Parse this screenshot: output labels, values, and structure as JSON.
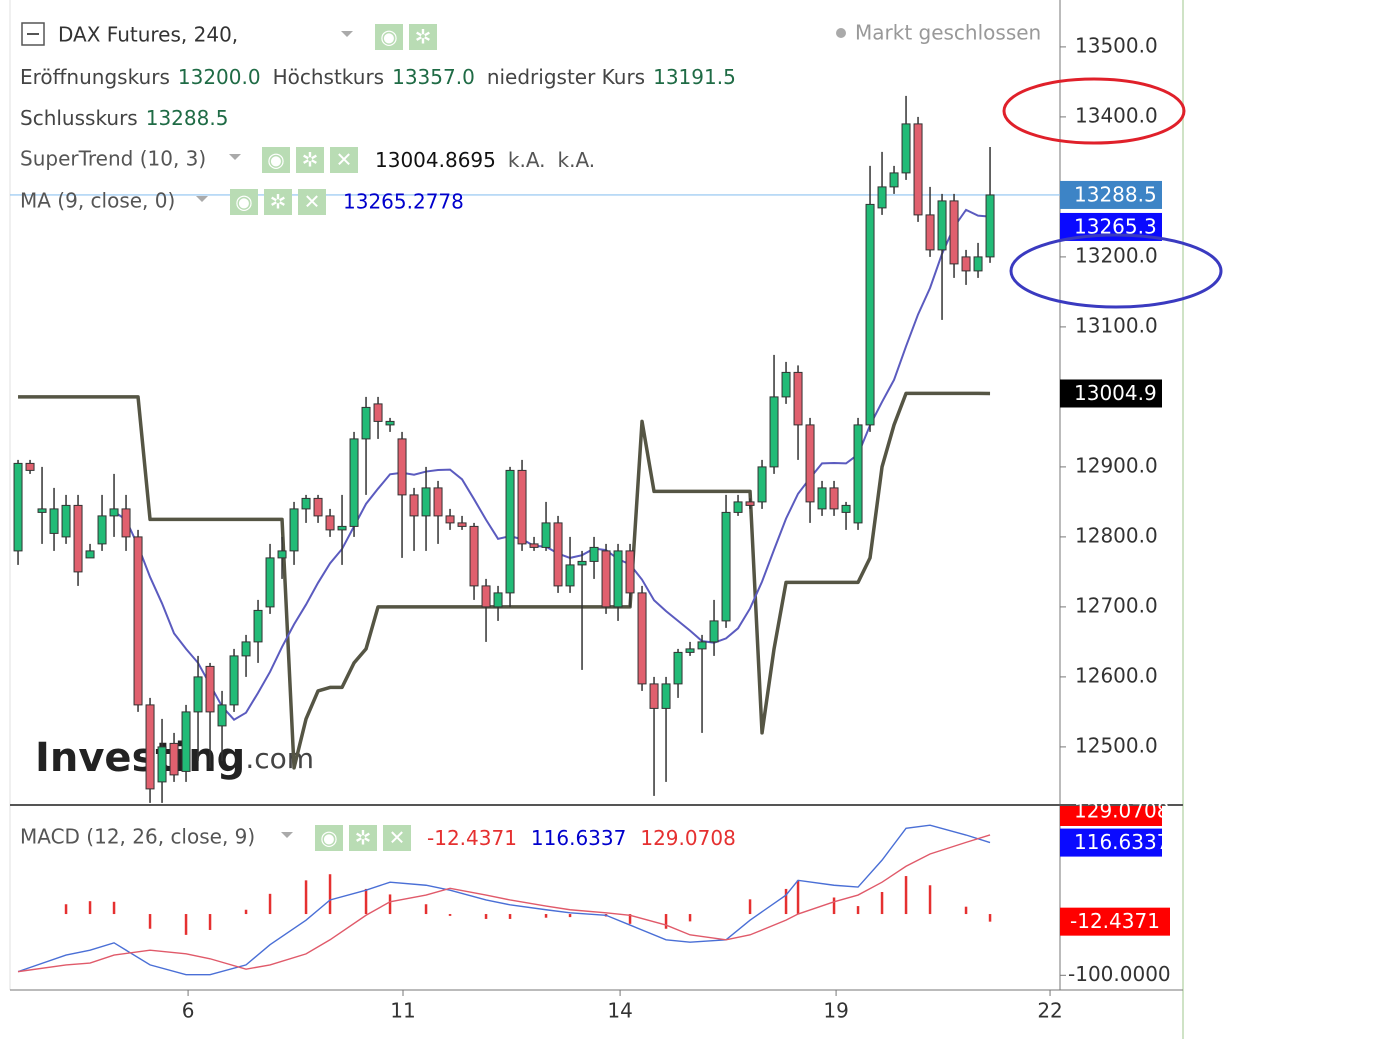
{
  "chart_data": {
    "type": "candlestick",
    "title": "DAX Futures, 240,",
    "status": "Markt geschlossen",
    "ohlc_legend": [
      {
        "label": "Eröffnungskurs",
        "value": "13200.0"
      },
      {
        "label": "Höchstkurs",
        "value": "13357.0"
      },
      {
        "label": "niedrigster Kurs",
        "value": "13191.5"
      },
      {
        "label": "Schlusskurs",
        "value": "13288.5"
      }
    ],
    "close_tag": "13288.5",
    "up_color": "#22bb77",
    "down_color": "#e0606e",
    "open": [
      12780,
      12905,
      12835,
      12805,
      12800,
      12845,
      12770,
      12790,
      12830,
      12840,
      12800,
      12560,
      12450,
      12505,
      12465,
      12550,
      12615,
      12530,
      12560,
      12630,
      12650,
      12700,
      12770,
      12780,
      12840,
      12855,
      12830,
      12810,
      12815,
      12940,
      12990,
      12960,
      12940,
      12860,
      12830,
      12870,
      12830,
      12820,
      12815,
      12730,
      12700,
      12720,
      12895,
      12790,
      12785,
      12820,
      12730,
      12760,
      12765,
      12780,
      12700,
      12780,
      12720,
      12590,
      12555,
      12590,
      12635,
      12640,
      12650,
      12680,
      12835,
      12850,
      12850,
      12900,
      13000,
      13035,
      12960,
      12840,
      12870,
      12835,
      12820,
      12960,
      13270,
      13300,
      13320,
      13390,
      13260,
      13210,
      13280,
      13200,
      13180,
      13200
    ],
    "high": [
      12910,
      12910,
      12900,
      12870,
      12860,
      12860,
      12790,
      12860,
      12890,
      12860,
      12810,
      12570,
      12540,
      12520,
      12560,
      12630,
      12620,
      12580,
      12640,
      12660,
      12710,
      12790,
      12800,
      12850,
      12860,
      12860,
      12840,
      12860,
      12950,
      13000,
      13000,
      12970,
      12950,
      12870,
      12900,
      12880,
      12840,
      12830,
      12820,
      12740,
      12730,
      12900,
      12910,
      12800,
      12850,
      12830,
      12800,
      12780,
      12800,
      12790,
      12790,
      12790,
      12730,
      12600,
      12600,
      12640,
      12650,
      12660,
      12710,
      12860,
      12860,
      12855,
      12910,
      13060,
      13050,
      13045,
      12970,
      12880,
      12880,
      12850,
      12970,
      13330,
      13350,
      13330,
      13430,
      13400,
      13300,
      13290,
      13290,
      13210,
      13220,
      13357
    ],
    "low": [
      12760,
      12890,
      12790,
      12780,
      12790,
      12730,
      12770,
      12780,
      12800,
      12780,
      12550,
      12420,
      12420,
      12450,
      12450,
      12480,
      12470,
      12480,
      12550,
      12600,
      12620,
      12690,
      12740,
      12760,
      12820,
      12820,
      12800,
      12760,
      12800,
      12860,
      12940,
      12950,
      12770,
      12780,
      12780,
      12790,
      12810,
      12810,
      12710,
      12650,
      12680,
      12700,
      12780,
      12780,
      12780,
      12720,
      12720,
      12610,
      12740,
      12690,
      12680,
      12700,
      12580,
      12430,
      12450,
      12570,
      12630,
      12520,
      12630,
      12670,
      12830,
      12840,
      12840,
      12890,
      12990,
      12910,
      12820,
      12830,
      12830,
      12810,
      12810,
      12950,
      13260,
      13290,
      13310,
      13250,
      13200,
      13110,
      13170,
      13160,
      13170,
      13191.5
    ],
    "close": [
      12905,
      12895,
      12840,
      12840,
      12845,
      12750,
      12780,
      12830,
      12840,
      12800,
      12560,
      12440,
      12500,
      12460,
      12550,
      12600,
      12550,
      12560,
      12630,
      12650,
      12695,
      12770,
      12780,
      12840,
      12855,
      12830,
      12810,
      12815,
      12940,
      12985,
      12965,
      12965,
      12860,
      12830,
      12870,
      12830,
      12820,
      12815,
      12730,
      12700,
      12720,
      12895,
      12790,
      12785,
      12820,
      12730,
      12760,
      12765,
      12785,
      12700,
      12780,
      12720,
      12590,
      12555,
      12590,
      12635,
      12640,
      12650,
      12680,
      12835,
      12850,
      12845,
      12900,
      13000,
      13035,
      12960,
      12850,
      12870,
      12840,
      12845,
      12960,
      13275,
      13300,
      13320,
      13390,
      13260,
      13210,
      13280,
      13190,
      13180,
      13200,
      13288.5
    ],
    "xlim": [
      -0.67,
      86.83
    ],
    "xticks": [
      {
        "value": 14.17,
        "label": "6"
      },
      {
        "value": 32.08,
        "label": "11"
      },
      {
        "value": 50.17,
        "label": "14"
      },
      {
        "value": 68.17,
        "label": "19"
      },
      {
        "value": 86,
        "label": "22"
      }
    ],
    "ylim": [
      12417,
      13567
    ],
    "yticks": [
      {
        "value": 13500,
        "label": "13500.0"
      },
      {
        "value": 13400,
        "label": "13400.0"
      },
      {
        "value": 13200,
        "label": "13200.0"
      },
      {
        "value": 13100,
        "label": "13100.0"
      },
      {
        "value": 12900,
        "label": "12900.0"
      },
      {
        "value": 12800,
        "label": "12800.0"
      },
      {
        "value": 12700,
        "label": "12700.0"
      },
      {
        "value": 12600,
        "label": "12600.0"
      },
      {
        "value": 12500,
        "label": "12500.0"
      }
    ],
    "supertrend": {
      "name": "SuperTrend (10, 3)",
      "value_text": "13004.8695",
      "extra": [
        "k.A.",
        "k.A."
      ],
      "tag": "13004.9",
      "color": "#555544",
      "values": [
        13000,
        13000,
        13000,
        13000,
        13000,
        13000,
        13000,
        13000,
        13000,
        13000,
        13000,
        12825,
        12825,
        12825,
        12825,
        12825,
        12825,
        12825,
        12825,
        12825,
        12825,
        12825,
        12825,
        12470,
        12540,
        12580,
        12585,
        12585,
        12620,
        12640,
        12700,
        12700,
        12700,
        12700,
        12700,
        12700,
        12700,
        12700,
        12700,
        12700,
        12700,
        12700,
        12700,
        12700,
        12700,
        12700,
        12700,
        12700,
        12700,
        12700,
        12700,
        12700,
        12965,
        12865,
        12865,
        12865,
        12865,
        12865,
        12865,
        12865,
        12865,
        12865,
        12520,
        12640,
        12735,
        12735,
        12735,
        12735,
        12735,
        12735,
        12735,
        12770,
        12900,
        12960,
        13005,
        13005,
        13005,
        13005,
        13005,
        13005,
        13005,
        13004.8695
      ]
    },
    "ma": {
      "name": "MA (9, close, 0)",
      "period": 9,
      "value_text": "13265.2778",
      "value": 13265.2778,
      "tag": "13265.3",
      "color": "#5b5bbf"
    },
    "macd": {
      "name": "MACD (12, 26, close, 9)",
      "ylim": [
        -124,
        178
      ],
      "yticks": [
        {
          "value": -100,
          "label": "-100.0000"
        }
      ],
      "x": [
        0,
        4,
        6,
        8,
        11,
        14,
        16,
        19,
        21,
        24,
        26,
        29,
        31,
        34,
        36,
        39,
        41,
        44,
        46,
        49,
        51,
        54,
        56,
        59,
        61,
        64,
        65,
        68,
        70,
        72,
        74,
        76,
        79,
        81
      ],
      "histogram": {
        "value_text": "-12.4371",
        "tag": "-12.4371",
        "color": "#e53030"
      },
      "series": [
        {
          "value_text": "116.6337",
          "tag": "116.6337",
          "color": "#4a6fd6",
          "values": [
            -94,
            -67,
            -59,
            -47,
            -83,
            -99,
            -99,
            -83,
            -50,
            -10,
            23,
            39,
            52,
            47,
            39,
            23,
            15,
            7,
            2,
            -2,
            -18,
            -42,
            -46,
            -42,
            -10,
            31,
            55,
            47,
            44,
            88,
            140,
            145,
            129,
            116.6337
          ]
        },
        {
          "value_text": "129.0708",
          "tag": "129.0708",
          "color": "#e05a6a",
          "values": [
            -94,
            -83,
            -80,
            -67,
            -59,
            -65,
            -73,
            -90,
            -83,
            -65,
            -42,
            -2,
            20,
            31,
            42,
            31,
            23,
            13,
            7,
            2,
            -2,
            -18,
            -34,
            -42,
            -34,
            -10,
            0,
            20,
            31,
            52,
            78,
            98,
            117,
            129.0708
          ]
        }
      ]
    },
    "watermark": [
      "Investing",
      ".com"
    ]
  }
}
